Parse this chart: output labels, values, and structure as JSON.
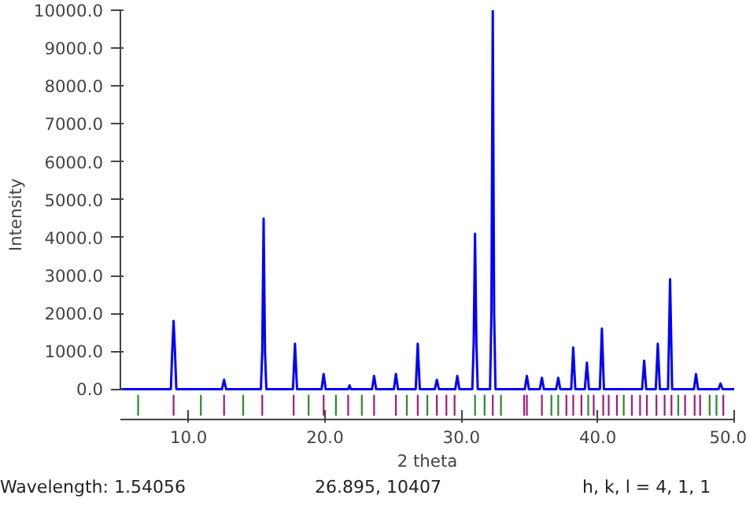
{
  "chart_data": {
    "type": "line",
    "xlabel": "2 theta",
    "ylabel": "Intensity",
    "xlim": [
      5,
      50
    ],
    "ylim": [
      -800,
      10000
    ],
    "xticks": [
      {
        "value": 10,
        "label": "10.0"
      },
      {
        "value": 20,
        "label": "20.0"
      },
      {
        "value": 30,
        "label": "30.0"
      },
      {
        "value": 40,
        "label": "40.0"
      },
      {
        "value": 50,
        "label": "50.0"
      }
    ],
    "yticks": [
      {
        "value": 0,
        "label": "0.0"
      },
      {
        "value": 1000,
        "label": "1000.0"
      },
      {
        "value": 2000,
        "label": "2000.0"
      },
      {
        "value": 3000,
        "label": "3000.0"
      },
      {
        "value": 4000,
        "label": "4000.0"
      },
      {
        "value": 5000,
        "label": "5000.0"
      },
      {
        "value": 6000,
        "label": "6000.0"
      },
      {
        "value": 7000,
        "label": "7000.0"
      },
      {
        "value": 8000,
        "label": "8000.0"
      },
      {
        "value": 9000,
        "label": "9000.0"
      },
      {
        "value": 10000,
        "label": "10000.0"
      }
    ],
    "grid": false,
    "series": [
      {
        "color": "#0000ff",
        "x": [
          5,
          8.7,
          8.8,
          8.9,
          9.0,
          9.1,
          12.45,
          12.6,
          12.75,
          15.3,
          15.4,
          15.5,
          15.6,
          15.7,
          17.65,
          17.8,
          17.95,
          19.75,
          19.9,
          20.05,
          21.7,
          21.8,
          21.9,
          23.45,
          23.6,
          23.75,
          25.05,
          25.2,
          25.35,
          26.65,
          26.8,
          26.95,
          28.05,
          28.2,
          28.35,
          29.55,
          29.7,
          29.85,
          30.8,
          30.9,
          31.0,
          31.1,
          31.2,
          32.1,
          32.2,
          32.3,
          32.4,
          32.5,
          34.65,
          34.8,
          34.95,
          35.75,
          35.9,
          36.05,
          36.95,
          37.1,
          37.25,
          38.05,
          38.2,
          38.35,
          39.05,
          39.2,
          39.35,
          40.15,
          40.3,
          40.45,
          43.25,
          43.4,
          43.55,
          44.25,
          44.4,
          44.55,
          45.15,
          45.3,
          45.45,
          47.05,
          47.2,
          47.35,
          48.85,
          49.0,
          49.15,
          50
        ],
        "values": [
          0,
          0,
          1000,
          1800,
          1000,
          0,
          0,
          250,
          0,
          0,
          1000,
          4500,
          1000,
          0,
          0,
          1200,
          0,
          0,
          400,
          0,
          0,
          100,
          0,
          0,
          350,
          0,
          0,
          400,
          0,
          0,
          1200,
          0,
          0,
          250,
          0,
          0,
          350,
          0,
          0,
          1200,
          4100,
          1200,
          0,
          0,
          2000,
          10000,
          2000,
          0,
          0,
          350,
          0,
          0,
          300,
          0,
          0,
          300,
          0,
          0,
          1100,
          0,
          0,
          700,
          0,
          0,
          1600,
          0,
          0,
          750,
          0,
          0,
          1200,
          0,
          0,
          2900,
          0,
          0,
          400,
          0,
          0,
          150,
          0,
          0
        ]
      },
      {
        "type": "bar",
        "color": "#2e8b2e",
        "x": [
          6.3,
          10.9,
          14.0,
          18.8,
          20.8,
          22.7,
          26.0,
          27.5,
          31.0,
          31.7,
          32.9,
          36.6,
          37.1,
          39.3,
          41.9,
          45.9,
          48.2,
          48.7
        ],
        "base": [
          -700,
          -700,
          -700,
          -700,
          -700,
          -700,
          -700,
          -700,
          -700,
          -700,
          -700,
          -700,
          -700,
          -700,
          -700,
          -700,
          -700,
          -700
        ],
        "values": [
          550,
          550,
          550,
          550,
          550,
          550,
          550,
          550,
          550,
          550,
          550,
          550,
          550,
          550,
          550,
          550,
          550,
          550
        ]
      },
      {
        "type": "bar",
        "color": "#a0207a",
        "x": [
          8.9,
          12.6,
          15.4,
          17.7,
          19.9,
          21.7,
          23.6,
          25.2,
          26.8,
          28.2,
          28.9,
          29.5,
          32.3,
          34.6,
          34.8,
          35.9,
          37.7,
          38.2,
          38.8,
          39.7,
          40.4,
          40.8,
          41.4,
          42.5,
          43.1,
          43.6,
          44.3,
          44.9,
          45.4,
          46.4,
          47.1,
          47.5,
          49.2
        ],
        "base": [
          -700,
          -700,
          -700,
          -700,
          -700,
          -700,
          -700,
          -700,
          -700,
          -700,
          -700,
          -700,
          -700,
          -700,
          -700,
          -700,
          -700,
          -700,
          -700,
          -700,
          -700,
          -700,
          -700,
          -700,
          -700,
          -700,
          -700,
          -700,
          -700,
          -700,
          -700,
          -700,
          -700
        ],
        "values": [
          550,
          550,
          550,
          550,
          550,
          550,
          550,
          550,
          550,
          550,
          550,
          550,
          550,
          550,
          550,
          550,
          550,
          550,
          550,
          550,
          550,
          550,
          550,
          550,
          550,
          550,
          550,
          550,
          550,
          550,
          550,
          550,
          550
        ]
      }
    ],
    "annotations": [
      "Wavelength: 1.54056",
      "26.895, 10407",
      "h, k, l = 4, 1, 1"
    ]
  }
}
